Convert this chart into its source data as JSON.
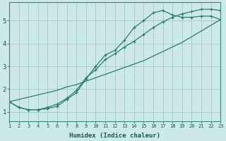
{
  "xlabel": "Humidex (Indice chaleur)",
  "bg_color": "#cce8e8",
  "grid_color": "#aacccc",
  "line_color": "#2a7d6e",
  "xlim": [
    1,
    23
  ],
  "ylim": [
    0.6,
    5.8
  ],
  "xticks": [
    1,
    2,
    3,
    4,
    5,
    6,
    7,
    8,
    9,
    10,
    11,
    12,
    13,
    14,
    15,
    16,
    17,
    18,
    19,
    20,
    21,
    22,
    23
  ],
  "yticks": [
    1,
    2,
    3,
    4,
    5
  ],
  "line_straight_x": [
    1,
    2,
    3,
    4,
    5,
    6,
    7,
    8,
    9,
    10,
    11,
    12,
    13,
    14,
    15,
    16,
    17,
    18,
    19,
    20,
    21,
    22,
    23
  ],
  "line_straight_y": [
    1.45,
    1.55,
    1.65,
    1.75,
    1.85,
    1.95,
    2.1,
    2.2,
    2.35,
    2.5,
    2.65,
    2.8,
    2.95,
    3.1,
    3.25,
    3.45,
    3.65,
    3.85,
    4.05,
    4.3,
    4.55,
    4.8,
    5.05
  ],
  "line_peak_x": [
    1,
    2,
    3,
    4,
    5,
    6,
    7,
    8,
    9,
    10,
    11,
    12,
    13,
    14,
    15,
    16,
    17,
    18,
    19,
    20,
    21,
    22,
    23
  ],
  "line_peak_y": [
    1.45,
    1.2,
    1.1,
    1.1,
    1.15,
    1.25,
    1.55,
    1.85,
    2.45,
    3.0,
    3.5,
    3.7,
    4.15,
    4.7,
    5.0,
    5.35,
    5.45,
    5.25,
    5.15,
    5.15,
    5.2,
    5.2,
    5.05
  ],
  "line_mid_x": [
    1,
    2,
    3,
    4,
    5,
    6,
    7,
    8,
    9,
    10,
    11,
    12,
    13,
    14,
    15,
    16,
    17,
    18,
    19,
    20,
    21,
    22,
    23
  ],
  "line_mid_y": [
    1.45,
    1.2,
    1.1,
    1.1,
    1.2,
    1.35,
    1.6,
    1.95,
    2.5,
    2.85,
    3.3,
    3.55,
    3.85,
    4.1,
    4.4,
    4.7,
    4.95,
    5.15,
    5.3,
    5.4,
    5.5,
    5.5,
    5.45
  ]
}
